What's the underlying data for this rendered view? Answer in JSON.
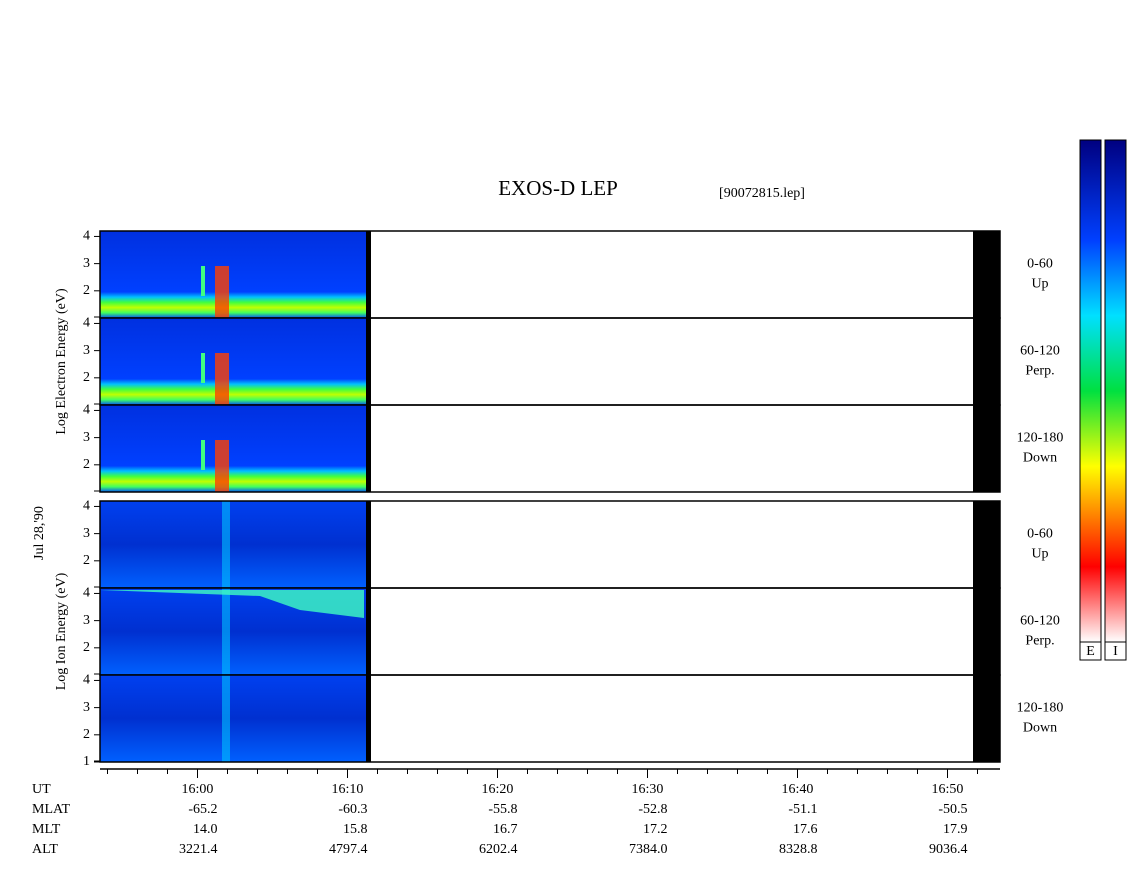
{
  "chart_data": {
    "type": "spectrogram",
    "title": "EXOS-D LEP",
    "subtitle": "[90072815.lep]",
    "date": "Jul 28,'90",
    "ylim": [
      1,
      4.2
    ],
    "xlim": [
      953.5,
      1013.5
    ],
    "xticks": [
      {
        "value": 960,
        "label": "16:00"
      },
      {
        "value": 970,
        "label": "16:10"
      },
      {
        "value": 980,
        "label": "16:20"
      },
      {
        "value": 990,
        "label": "16:30"
      },
      {
        "value": 1000,
        "label": "16:40"
      },
      {
        "value": 1010,
        "label": "16:50"
      }
    ],
    "groups": [
      {
        "label": "Log Electron Energy (eV)",
        "colorbar": "E",
        "panels": [
          {
            "pitch": "0-60",
            "direction": "Up",
            "yticks": [
              2,
              3,
              4
            ]
          },
          {
            "pitch": "60-120",
            "direction": "Perp.",
            "yticks": [
              2,
              3,
              4
            ]
          },
          {
            "pitch": "120-180",
            "direction": "Down",
            "yticks": [
              2,
              3,
              4
            ]
          }
        ]
      },
      {
        "label": "Log Ion Energy (eV)",
        "colorbar": "I",
        "panels": [
          {
            "pitch": "0-60",
            "direction": "Up",
            "yticks": [
              2,
              3,
              4
            ]
          },
          {
            "pitch": "60-120",
            "direction": "Perp.",
            "yticks": [
              2,
              3,
              4
            ]
          },
          {
            "pitch": "120-180",
            "direction": "Down",
            "yticks": [
              1,
              2,
              3,
              4
            ]
          }
        ]
      }
    ],
    "orbit_table": {
      "rows": [
        {
          "label": "UT",
          "values": []
        },
        {
          "label": "MLAT",
          "values": [
            "-65.2",
            "-60.3",
            "-55.8",
            "-52.8",
            "-51.1",
            "-50.5"
          ]
        },
        {
          "label": "MLT",
          "values": [
            "14.0",
            "15.8",
            "16.7",
            "17.2",
            "17.6",
            "17.9"
          ]
        },
        {
          "label": "ALT",
          "values": [
            "3221.4",
            "4797.4",
            "6202.4",
            "7384.0",
            "8328.8",
            "9036.4"
          ]
        }
      ]
    }
  }
}
